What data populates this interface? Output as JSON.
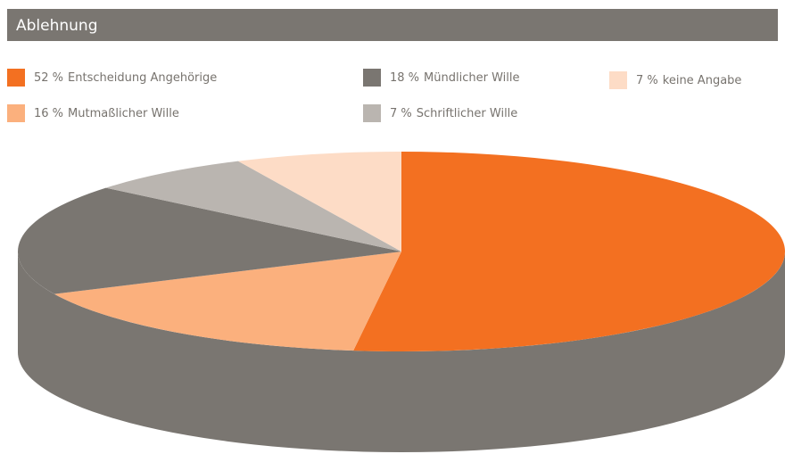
{
  "chart_data": {
    "type": "pie",
    "title": "Ablehnung",
    "categories": [
      "Entscheidung Angehörige",
      "Mutmaßlicher Wille",
      "Mündlicher Wille",
      "Schriftlicher Wille",
      "keine Angabe"
    ],
    "values": [
      52,
      16,
      18,
      7,
      7
    ],
    "value_labels": [
      "52 %",
      "16 %",
      "18 %",
      "7 %",
      "7 %"
    ],
    "colors": [
      "#f37021",
      "#fbb07d",
      "#7a7671",
      "#bab5b0",
      "#fddcc6"
    ]
  }
}
